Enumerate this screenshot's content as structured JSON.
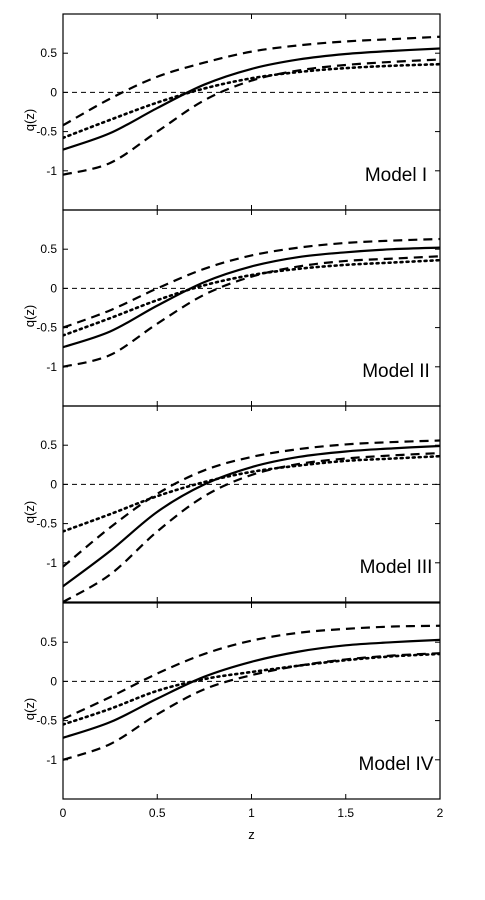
{
  "chart_data": [
    {
      "type": "line",
      "annotation": "Model I",
      "ylabel": "q(z)",
      "xlabel": "",
      "xlim": [
        0,
        2
      ],
      "ylim": [
        -1.5,
        1.0
      ],
      "yticks": [
        "0.5",
        "0",
        "-0.5",
        "-1"
      ],
      "yticks_values": [
        0.5,
        0,
        -0.5,
        -1
      ],
      "reference_line": 0,
      "series": [
        {
          "style": "solid",
          "x": [
            0,
            0.25,
            0.5,
            0.75,
            1.0,
            1.25,
            1.5,
            1.75,
            2.0
          ],
          "y": [
            -0.73,
            -0.52,
            -0.2,
            0.1,
            0.3,
            0.42,
            0.49,
            0.53,
            0.56
          ]
        },
        {
          "style": "dashed",
          "x": [
            0,
            0.25,
            0.5,
            0.75,
            1.0,
            1.25,
            1.5,
            1.75,
            2.0
          ],
          "y": [
            -0.42,
            -0.08,
            0.2,
            0.38,
            0.52,
            0.6,
            0.65,
            0.68,
            0.71
          ]
        },
        {
          "style": "dashed",
          "x": [
            0,
            0.25,
            0.5,
            0.75,
            1.0,
            1.25,
            1.5,
            1.75,
            2.0
          ],
          "y": [
            -1.05,
            -0.9,
            -0.5,
            -0.1,
            0.15,
            0.28,
            0.35,
            0.39,
            0.42
          ]
        },
        {
          "style": "dotted",
          "x": [
            0,
            0.25,
            0.5,
            0.75,
            1.0,
            1.25,
            1.5,
            1.75,
            2.0
          ],
          "y": [
            -0.58,
            -0.35,
            -0.13,
            0.05,
            0.18,
            0.26,
            0.31,
            0.34,
            0.36
          ]
        }
      ]
    },
    {
      "type": "line",
      "annotation": "Model II",
      "ylabel": "q(z)",
      "xlabel": "",
      "xlim": [
        0,
        2
      ],
      "ylim": [
        -1.5,
        1.0
      ],
      "yticks": [
        "0.5",
        "0",
        "-0.5",
        "-1"
      ],
      "yticks_values": [
        0.5,
        0,
        -0.5,
        -1
      ],
      "reference_line": 0,
      "series": [
        {
          "style": "solid",
          "x": [
            0,
            0.25,
            0.5,
            0.75,
            1.0,
            1.25,
            1.5,
            1.75,
            2.0
          ],
          "y": [
            -0.75,
            -0.55,
            -0.22,
            0.08,
            0.28,
            0.4,
            0.46,
            0.5,
            0.52
          ]
        },
        {
          "style": "dashed",
          "x": [
            0,
            0.25,
            0.5,
            0.75,
            1.0,
            1.25,
            1.5,
            1.75,
            2.0
          ],
          "y": [
            -0.5,
            -0.28,
            0.0,
            0.25,
            0.42,
            0.52,
            0.58,
            0.61,
            0.63
          ]
        },
        {
          "style": "dashed",
          "x": [
            0,
            0.25,
            0.5,
            0.75,
            1.0,
            1.25,
            1.5,
            1.75,
            2.0
          ],
          "y": [
            -1.0,
            -0.85,
            -0.45,
            -0.08,
            0.15,
            0.28,
            0.35,
            0.38,
            0.41
          ]
        },
        {
          "style": "dotted",
          "x": [
            0,
            0.25,
            0.5,
            0.75,
            1.0,
            1.25,
            1.5,
            1.75,
            2.0
          ],
          "y": [
            -0.6,
            -0.38,
            -0.15,
            0.04,
            0.17,
            0.25,
            0.3,
            0.33,
            0.36
          ]
        }
      ]
    },
    {
      "type": "line",
      "annotation": "Model III",
      "ylabel": "q(z)",
      "xlabel": "",
      "xlim": [
        0,
        2
      ],
      "ylim": [
        -1.5,
        1.0
      ],
      "yticks": [
        "0.5",
        "0",
        "-0.5",
        "-1"
      ],
      "yticks_values": [
        0.5,
        0,
        -0.5,
        -1
      ],
      "reference_line": 0,
      "series": [
        {
          "style": "solid",
          "x": [
            0,
            0.25,
            0.5,
            0.75,
            1.0,
            1.25,
            1.5,
            1.75,
            2.0
          ],
          "y": [
            -1.3,
            -0.85,
            -0.35,
            0.0,
            0.22,
            0.35,
            0.42,
            0.46,
            0.49
          ]
        },
        {
          "style": "dashed",
          "x": [
            0,
            0.25,
            0.5,
            0.75,
            1.0,
            1.25,
            1.5,
            1.75,
            2.0
          ],
          "y": [
            -1.05,
            -0.55,
            -0.12,
            0.18,
            0.35,
            0.45,
            0.51,
            0.54,
            0.56
          ]
        },
        {
          "style": "dashed",
          "x": [
            0,
            0.25,
            0.5,
            0.75,
            1.0,
            1.25,
            1.5,
            1.75,
            2.0
          ],
          "y": [
            -1.5,
            -1.15,
            -0.6,
            -0.15,
            0.12,
            0.26,
            0.33,
            0.37,
            0.4
          ]
        },
        {
          "style": "dotted",
          "x": [
            0,
            0.25,
            0.5,
            0.75,
            1.0,
            1.25,
            1.5,
            1.75,
            2.0
          ],
          "y": [
            -0.6,
            -0.38,
            -0.15,
            0.03,
            0.16,
            0.24,
            0.3,
            0.33,
            0.36
          ]
        }
      ]
    },
    {
      "type": "line",
      "annotation": "Model IV",
      "ylabel": "q(z)",
      "xlabel": "z",
      "xlim": [
        0,
        2
      ],
      "ylim": [
        -1.5,
        1.0
      ],
      "xticks": [
        "0",
        "0.5",
        "1",
        "1.5",
        "2"
      ],
      "xticks_values": [
        0,
        0.5,
        1,
        1.5,
        2
      ],
      "yticks": [
        "0.5",
        "0",
        "-0.5",
        "-1"
      ],
      "yticks_values": [
        0.5,
        0,
        -0.5,
        -1
      ],
      "reference_line": 0,
      "series": [
        {
          "style": "solid",
          "x": [
            0,
            0.25,
            0.5,
            0.75,
            1.0,
            1.25,
            1.5,
            1.75,
            2.0
          ],
          "y": [
            -0.72,
            -0.52,
            -0.22,
            0.06,
            0.25,
            0.38,
            0.46,
            0.5,
            0.53
          ]
        },
        {
          "style": "dashed",
          "x": [
            0,
            0.25,
            0.5,
            0.75,
            1.0,
            1.25,
            1.5,
            1.75,
            2.0
          ],
          "y": [
            -0.48,
            -0.2,
            0.1,
            0.35,
            0.52,
            0.62,
            0.67,
            0.7,
            0.71
          ]
        },
        {
          "style": "dashed",
          "x": [
            0,
            0.25,
            0.5,
            0.75,
            1.0,
            1.25,
            1.5,
            1.75,
            2.0
          ],
          "y": [
            -1.0,
            -0.8,
            -0.42,
            -0.1,
            0.08,
            0.2,
            0.28,
            0.33,
            0.36
          ]
        },
        {
          "style": "dotted",
          "x": [
            0,
            0.25,
            0.5,
            0.75,
            1.0,
            1.25,
            1.5,
            1.75,
            2.0
          ],
          "y": [
            -0.55,
            -0.35,
            -0.12,
            0.03,
            0.12,
            0.2,
            0.27,
            0.32,
            0.35
          ]
        }
      ]
    }
  ]
}
